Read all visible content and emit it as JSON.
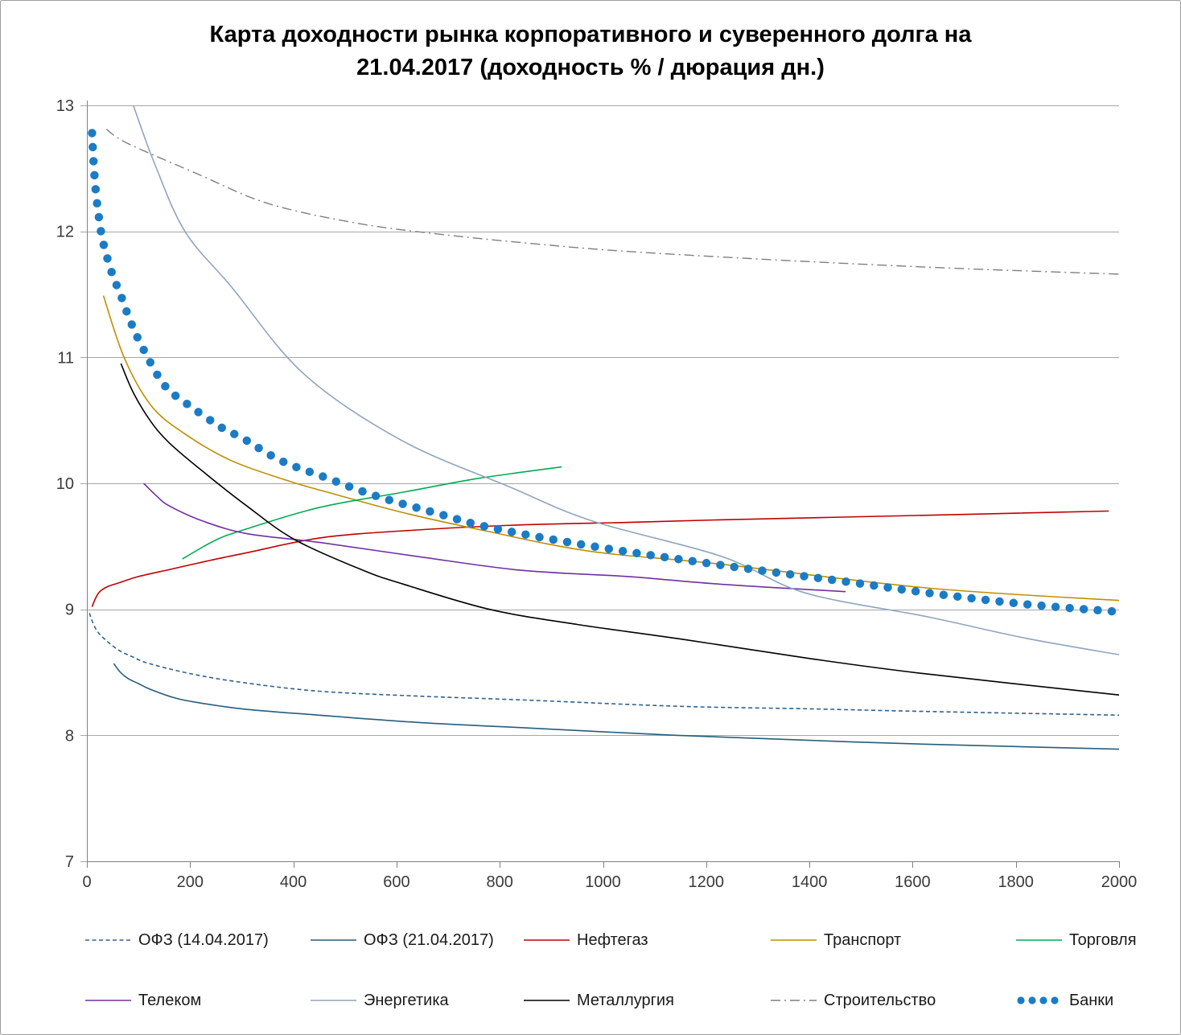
{
  "title": "Карта доходности рынка корпоративного и суверенного долга на\n21.04.2017 (доходность % / дюрация дн.)",
  "chart_data": {
    "type": "line",
    "title": "Карта доходности рынка корпоративного и суверенного долга на 21.04.2017 (доходность % / дюрация дн.)",
    "xlabel": "",
    "ylabel": "",
    "grid": "horizontal",
    "legend_position": "bottom",
    "x_axis": {
      "min": 0,
      "max": 2000,
      "tick_step": 200,
      "ticks": [
        0,
        200,
        400,
        600,
        800,
        1000,
        1200,
        1400,
        1600,
        1800,
        2000
      ]
    },
    "y_axis": {
      "min": 7,
      "max": 13,
      "tick_step": 1,
      "ticks": [
        7,
        8,
        9,
        10,
        11,
        12,
        13
      ]
    },
    "series": [
      {
        "name": "ОФЗ (14.04.2017)",
        "color": "#31618C",
        "line_style": "dashed",
        "points": [
          [
            5,
            8.97
          ],
          [
            10,
            8.91
          ],
          [
            18,
            8.84
          ],
          [
            30,
            8.78
          ],
          [
            60,
            8.68
          ],
          [
            90,
            8.62
          ],
          [
            120,
            8.57
          ],
          [
            200,
            8.49
          ],
          [
            300,
            8.42
          ],
          [
            450,
            8.35
          ],
          [
            650,
            8.31
          ],
          [
            850,
            8.28
          ],
          [
            1150,
            8.23
          ],
          [
            1400,
            8.21
          ],
          [
            1620,
            8.19
          ],
          [
            2000,
            8.16
          ]
        ]
      },
      {
        "name": "ОФЗ (21.04.2017)",
        "color": "#265D7C",
        "line_style": "solid",
        "points": [
          [
            52,
            8.57
          ],
          [
            65,
            8.5
          ],
          [
            80,
            8.45
          ],
          [
            100,
            8.41
          ],
          [
            120,
            8.37
          ],
          [
            160,
            8.31
          ],
          [
            200,
            8.27
          ],
          [
            300,
            8.21
          ],
          [
            450,
            8.16
          ],
          [
            650,
            8.1
          ],
          [
            846,
            8.06
          ],
          [
            1140,
            8.0
          ],
          [
            1400,
            7.96
          ],
          [
            1620,
            7.93
          ],
          [
            2000,
            7.89
          ]
        ]
      },
      {
        "name": "Нефтегаз",
        "color": "#C00000",
        "line_style": "solid",
        "points": [
          [
            10,
            9.02
          ],
          [
            17,
            9.09
          ],
          [
            25,
            9.14
          ],
          [
            40,
            9.18
          ],
          [
            62,
            9.21
          ],
          [
            100,
            9.26
          ],
          [
            165,
            9.32
          ],
          [
            240,
            9.39
          ],
          [
            311,
            9.45
          ],
          [
            457,
            9.57
          ],
          [
            640,
            9.63
          ],
          [
            841,
            9.67
          ],
          [
            1049,
            9.69
          ],
          [
            1225,
            9.71
          ],
          [
            1662,
            9.75
          ],
          [
            1980,
            9.78
          ]
        ]
      },
      {
        "name": "Транспорт",
        "color": "#BF8F00",
        "line_style": "solid",
        "points": [
          [
            32,
            11.49
          ],
          [
            72,
            11.0
          ],
          [
            124,
            10.62
          ],
          [
            187,
            10.4
          ],
          [
            280,
            10.18
          ],
          [
            390,
            10.02
          ],
          [
            457,
            9.94
          ],
          [
            610,
            9.77
          ],
          [
            764,
            9.63
          ],
          [
            976,
            9.46
          ],
          [
            1225,
            9.36
          ],
          [
            1626,
            9.17
          ],
          [
            2000,
            9.07
          ]
        ]
      },
      {
        "name": "Торговля",
        "color": "#00AC54",
        "line_style": "solid",
        "points": [
          [
            185,
            9.4
          ],
          [
            250,
            9.55
          ],
          [
            311,
            9.64
          ],
          [
            452,
            9.81
          ],
          [
            613,
            9.93
          ],
          [
            760,
            10.04
          ],
          [
            920,
            10.13
          ]
        ]
      },
      {
        "name": "Телеком",
        "color": "#7030A0",
        "line_style": "solid",
        "points": [
          [
            110,
            10.0
          ],
          [
            135,
            9.9
          ],
          [
            160,
            9.82
          ],
          [
            225,
            9.7
          ],
          [
            311,
            9.6
          ],
          [
            452,
            9.53
          ],
          [
            640,
            9.42
          ],
          [
            841,
            9.31
          ],
          [
            1049,
            9.26
          ],
          [
            1225,
            9.2
          ],
          [
            1470,
            9.14
          ]
        ]
      },
      {
        "name": "Энергетика",
        "color": "#8FA5BD",
        "line_style": "solid",
        "points": [
          [
            90,
            13.0
          ],
          [
            130,
            12.55
          ],
          [
            190,
            12.0
          ],
          [
            280,
            11.56
          ],
          [
            420,
            10.87
          ],
          [
            610,
            10.34
          ],
          [
            820,
            9.97
          ],
          [
            980,
            9.7
          ],
          [
            1230,
            9.42
          ],
          [
            1392,
            9.13
          ],
          [
            1630,
            8.94
          ],
          [
            1820,
            8.77
          ],
          [
            2000,
            8.64
          ]
        ]
      },
      {
        "name": "Металлургия",
        "color": "#000000",
        "line_style": "solid",
        "points": [
          [
            66,
            10.95
          ],
          [
            90,
            10.72
          ],
          [
            124,
            10.49
          ],
          [
            160,
            10.32
          ],
          [
            223,
            10.1
          ],
          [
            310,
            9.82
          ],
          [
            404,
            9.55
          ],
          [
            535,
            9.31
          ],
          [
            613,
            9.2
          ],
          [
            780,
            9.0
          ],
          [
            950,
            8.88
          ],
          [
            1158,
            8.76
          ],
          [
            1400,
            8.61
          ],
          [
            1621,
            8.49
          ],
          [
            2000,
            8.32
          ]
        ]
      },
      {
        "name": "Строительство",
        "color": "#7F7F7F",
        "line_style": "dashdot",
        "points": [
          [
            38,
            12.81
          ],
          [
            78,
            12.7
          ],
          [
            212,
            12.46
          ],
          [
            352,
            12.22
          ],
          [
            530,
            12.06
          ],
          [
            700,
            11.97
          ],
          [
            870,
            11.9
          ],
          [
            1049,
            11.84
          ],
          [
            1350,
            11.77
          ],
          [
            1662,
            11.71
          ],
          [
            2000,
            11.66
          ]
        ]
      },
      {
        "name": "Банки",
        "color": "#1B7CC5",
        "line_style": "dots",
        "points": [
          [
            10,
            12.78
          ],
          [
            13,
            12.55
          ],
          [
            17,
            12.33
          ],
          [
            22,
            12.15
          ],
          [
            28,
            11.98
          ],
          [
            36,
            11.84
          ],
          [
            50,
            11.65
          ],
          [
            65,
            11.5
          ],
          [
            85,
            11.28
          ],
          [
            110,
            11.06
          ],
          [
            150,
            10.78
          ],
          [
            194,
            10.63
          ],
          [
            262,
            10.44
          ],
          [
            301,
            10.36
          ],
          [
            376,
            10.18
          ],
          [
            460,
            10.05
          ],
          [
            560,
            9.9
          ],
          [
            680,
            9.76
          ],
          [
            780,
            9.65
          ],
          [
            980,
            9.5
          ],
          [
            1230,
            9.35
          ],
          [
            1470,
            9.22
          ],
          [
            1630,
            9.13
          ],
          [
            1820,
            9.04
          ],
          [
            2000,
            8.98
          ]
        ]
      }
    ],
    "colors": {
      "gridline": "#A6A6A6",
      "axis": "#808080",
      "tick_label": "#3A3A3A"
    }
  }
}
